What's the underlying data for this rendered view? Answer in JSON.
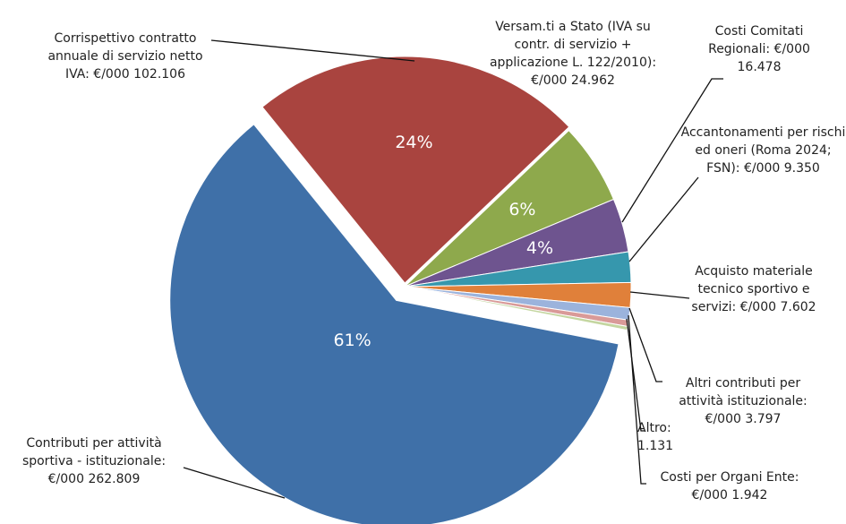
{
  "chart_data": {
    "type": "pie",
    "categories": [
      "Corrispettivo contratto annuale di servizio netto IVA: €/000",
      "Versam.ti a Stato (IVA su contr. di servizio + applicazione L. 122/2010): €/000",
      "Costi Comitati Regionali: €/000",
      "Accantonamenti per rischi ed oneri (Roma 2024; FSN): €/000",
      "Acquisto materiale tecnico sportivo e servizi: €/000",
      "Altri contributi per attività istituzionale: €/000",
      "Costi per Organi Ente: €/000",
      "Altro:",
      "Contributi per attività sportiva - istituzionale: €/000"
    ],
    "values": [
      102106,
      24962,
      16478,
      9350,
      7602,
      3797,
      1942,
      1131,
      262809
    ],
    "value_labels": [
      "102.106",
      "24.962",
      "16.478",
      "9.350",
      "7.602",
      "3.797",
      "1.942",
      "1.131",
      "262.809"
    ],
    "percents": [
      24,
      6,
      4,
      null,
      null,
      null,
      null,
      null,
      61
    ],
    "percent_labels": [
      "24%",
      "6%",
      "4%",
      null,
      null,
      null,
      null,
      null,
      "61%"
    ],
    "colors": [
      "#a9443f",
      "#8ea94c",
      "#6e548f",
      "#3697ad",
      "#e0803a",
      "#9bb3dc",
      "#d99a98",
      "#c4d6a0",
      "#3f70a8"
    ]
  }
}
